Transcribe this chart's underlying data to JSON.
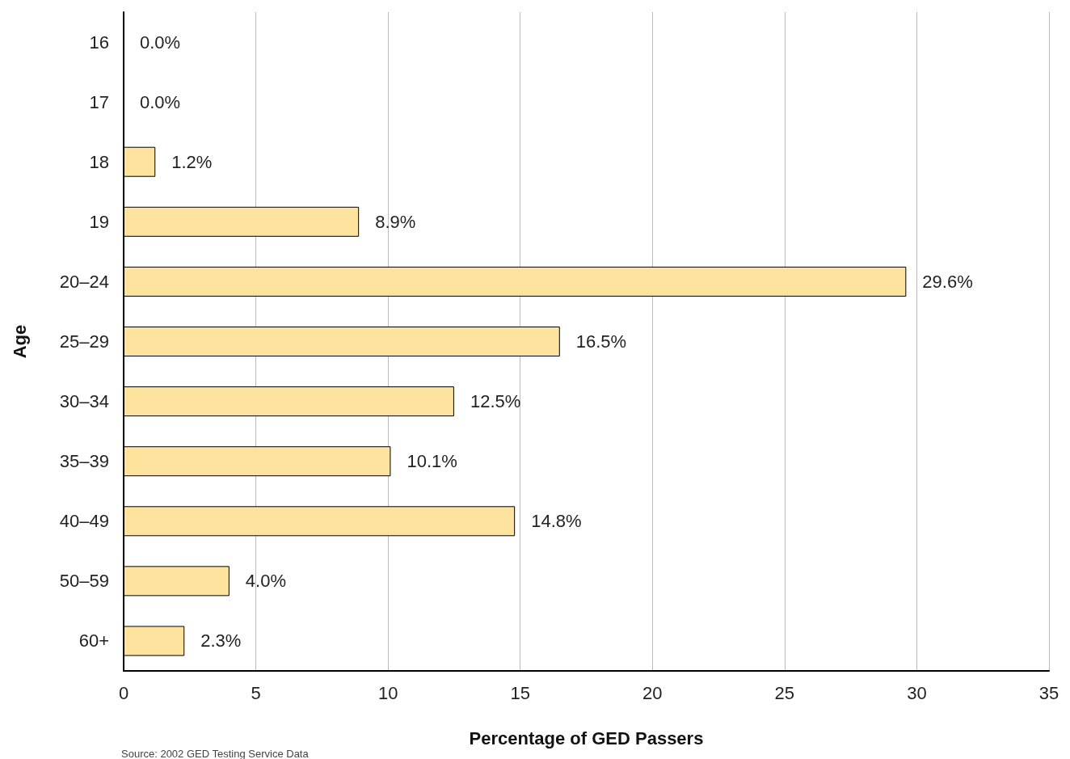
{
  "chart_data": {
    "type": "bar",
    "orientation": "horizontal",
    "categories": [
      "16",
      "17",
      "18",
      "19",
      "20–24",
      "25–29",
      "30–34",
      "35–39",
      "40–49",
      "50–59",
      "60+"
    ],
    "values": [
      0.0,
      0.0,
      1.2,
      8.9,
      29.6,
      16.5,
      12.5,
      10.1,
      14.8,
      4.0,
      2.3
    ],
    "value_labels": [
      "0.0%",
      "0.0%",
      "1.2%",
      "8.9%",
      "29.6%",
      "16.5%",
      "12.5%",
      "10.1%",
      "14.8%",
      "4.0%",
      "2.3%"
    ],
    "color": "#fde39d",
    "xlim": [
      0,
      35
    ],
    "xticks": [
      0,
      5,
      10,
      15,
      20,
      25,
      30,
      35
    ],
    "xlabel": "Percentage of GED Passers",
    "ylabel": "Age",
    "grid": "x",
    "annotations": [
      "Source: 2002 GED Testing Service Data"
    ]
  }
}
